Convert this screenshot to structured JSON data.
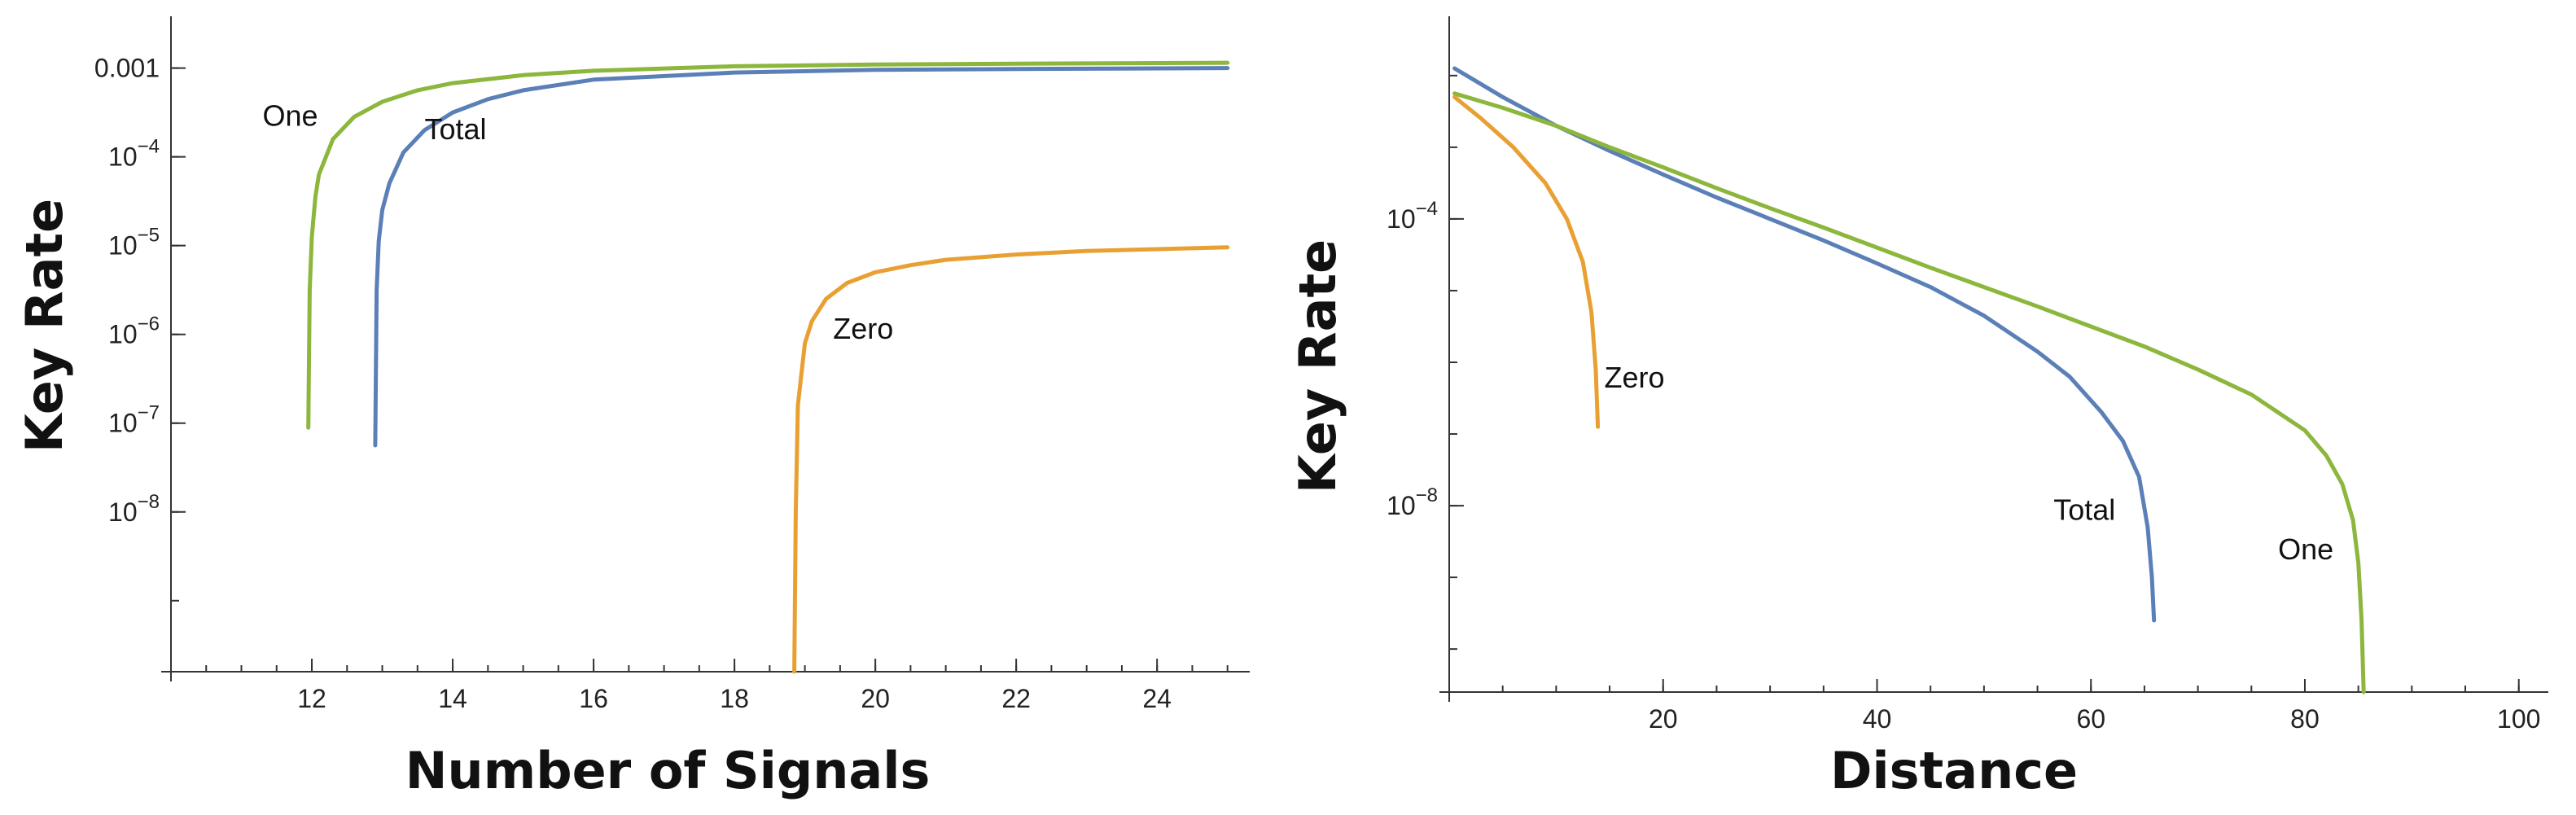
{
  "chart_data": [
    {
      "type": "line",
      "xlabel": "Number of Signals",
      "ylabel": "Key Rate",
      "xscale": "linear",
      "yscale": "log",
      "xlim": [
        10,
        25.2
      ],
      "ylim_log10": [
        -9.8,
        -2.6
      ],
      "x_ticks": [
        {
          "value": 12,
          "label": "12"
        },
        {
          "value": 14,
          "label": "14"
        },
        {
          "value": 16,
          "label": "16"
        },
        {
          "value": 18,
          "label": "18"
        },
        {
          "value": 20,
          "label": "20"
        },
        {
          "value": 22,
          "label": "22"
        },
        {
          "value": 24,
          "label": "24"
        }
      ],
      "y_ticks": [
        {
          "log10": -3,
          "label": "0.001"
        },
        {
          "log10": -4,
          "base": "10",
          "exp": "−4"
        },
        {
          "log10": -5,
          "base": "10",
          "exp": "−5"
        },
        {
          "log10": -6,
          "base": "10",
          "exp": "−6"
        },
        {
          "log10": -7,
          "base": "10",
          "exp": "−7"
        },
        {
          "log10": -8,
          "base": "10",
          "exp": "−8"
        }
      ],
      "series": [
        {
          "name": "One",
          "label": "One",
          "color": "#8cb63c",
          "x": [
            11.95,
            11.97,
            12.0,
            12.05,
            12.1,
            12.3,
            12.6,
            13.0,
            13.5,
            14.0,
            15.0,
            16.0,
            18.0,
            20.0,
            22.0,
            25.0
          ],
          "log10y": [
            -7.05,
            -5.5,
            -4.9,
            -4.45,
            -4.2,
            -3.8,
            -3.55,
            -3.38,
            -3.25,
            -3.17,
            -3.08,
            -3.03,
            -2.98,
            -2.96,
            -2.95,
            -2.94
          ],
          "label_x": 11.3,
          "label_log10y": -3.65
        },
        {
          "name": "Total",
          "label": "Total",
          "color": "#5b7fb7",
          "x": [
            12.9,
            12.92,
            12.95,
            13.0,
            13.1,
            13.3,
            13.6,
            14.0,
            14.5,
            15.0,
            16.0,
            18.0,
            20.0,
            22.0,
            25.0
          ],
          "log10y": [
            -7.25,
            -5.5,
            -4.95,
            -4.6,
            -4.3,
            -3.95,
            -3.7,
            -3.5,
            -3.35,
            -3.25,
            -3.13,
            -3.05,
            -3.02,
            -3.01,
            -3.0
          ],
          "label_x": 13.6,
          "label_log10y": -3.8
        },
        {
          "name": "Zero",
          "label": "Zero",
          "color": "#e9a032",
          "x": [
            18.85,
            18.87,
            18.9,
            19.0,
            19.1,
            19.3,
            19.6,
            20.0,
            20.5,
            21.0,
            22.0,
            23.0,
            24.0,
            25.0
          ],
          "log10y": [
            -9.8,
            -8.0,
            -6.8,
            -6.1,
            -5.85,
            -5.6,
            -5.42,
            -5.3,
            -5.22,
            -5.16,
            -5.1,
            -5.06,
            -5.04,
            -5.02
          ],
          "label_x": 19.4,
          "label_log10y": -6.05
        }
      ]
    },
    {
      "type": "line",
      "xlabel": "Distance",
      "ylabel": "Key Rate",
      "xscale": "linear",
      "yscale": "log",
      "xlim": [
        0,
        102
      ],
      "ylim_log10": [
        -10.6,
        -1.4
      ],
      "x_ticks": [
        {
          "value": 20,
          "label": "20"
        },
        {
          "value": 40,
          "label": "40"
        },
        {
          "value": 60,
          "label": "60"
        },
        {
          "value": 80,
          "label": "80"
        },
        {
          "value": 100,
          "label": "100"
        }
      ],
      "y_ticks": [
        {
          "log10": -4,
          "base": "10",
          "exp": "−4"
        },
        {
          "log10": -8,
          "base": "10",
          "exp": "−8"
        }
      ],
      "series": [
        {
          "name": "Total",
          "label": "Total",
          "color": "#5b7fb7",
          "x": [
            0.5,
            5,
            10,
            15,
            20,
            25,
            30,
            35,
            40,
            45,
            50,
            55,
            58,
            61,
            63,
            64.5,
            65.3,
            65.7,
            65.9
          ],
          "log10y": [
            -1.9,
            -2.3,
            -2.7,
            -3.05,
            -3.38,
            -3.7,
            -4.0,
            -4.3,
            -4.62,
            -4.95,
            -5.35,
            -5.85,
            -6.2,
            -6.7,
            -7.1,
            -7.6,
            -8.3,
            -9.0,
            -9.6
          ],
          "label_x": 56.5,
          "label_log10y": -8.2
        },
        {
          "name": "One",
          "label": "One",
          "color": "#8cb63c",
          "x": [
            0.5,
            5,
            10,
            15,
            20,
            25,
            30,
            35,
            40,
            45,
            50,
            55,
            60,
            65,
            70,
            75,
            80,
            82,
            83.5,
            84.5,
            85.0,
            85.3,
            85.5
          ],
          "log10y": [
            -2.25,
            -2.45,
            -2.7,
            -3.0,
            -3.28,
            -3.57,
            -3.85,
            -4.12,
            -4.4,
            -4.68,
            -4.95,
            -5.22,
            -5.5,
            -5.78,
            -6.1,
            -6.45,
            -6.95,
            -7.3,
            -7.7,
            -8.2,
            -8.8,
            -9.6,
            -10.6
          ],
          "label_x": 77.5,
          "label_log10y": -8.75
        },
        {
          "name": "Zero",
          "label": "Zero",
          "color": "#e9a032",
          "x": [
            0.5,
            3,
            6,
            9,
            11,
            12.5,
            13.3,
            13.7,
            13.9
          ],
          "log10y": [
            -2.3,
            -2.6,
            -3.0,
            -3.5,
            -4.0,
            -4.6,
            -5.3,
            -6.1,
            -6.9
          ],
          "label_x": 14.5,
          "label_log10y": -6.35
        }
      ]
    }
  ]
}
